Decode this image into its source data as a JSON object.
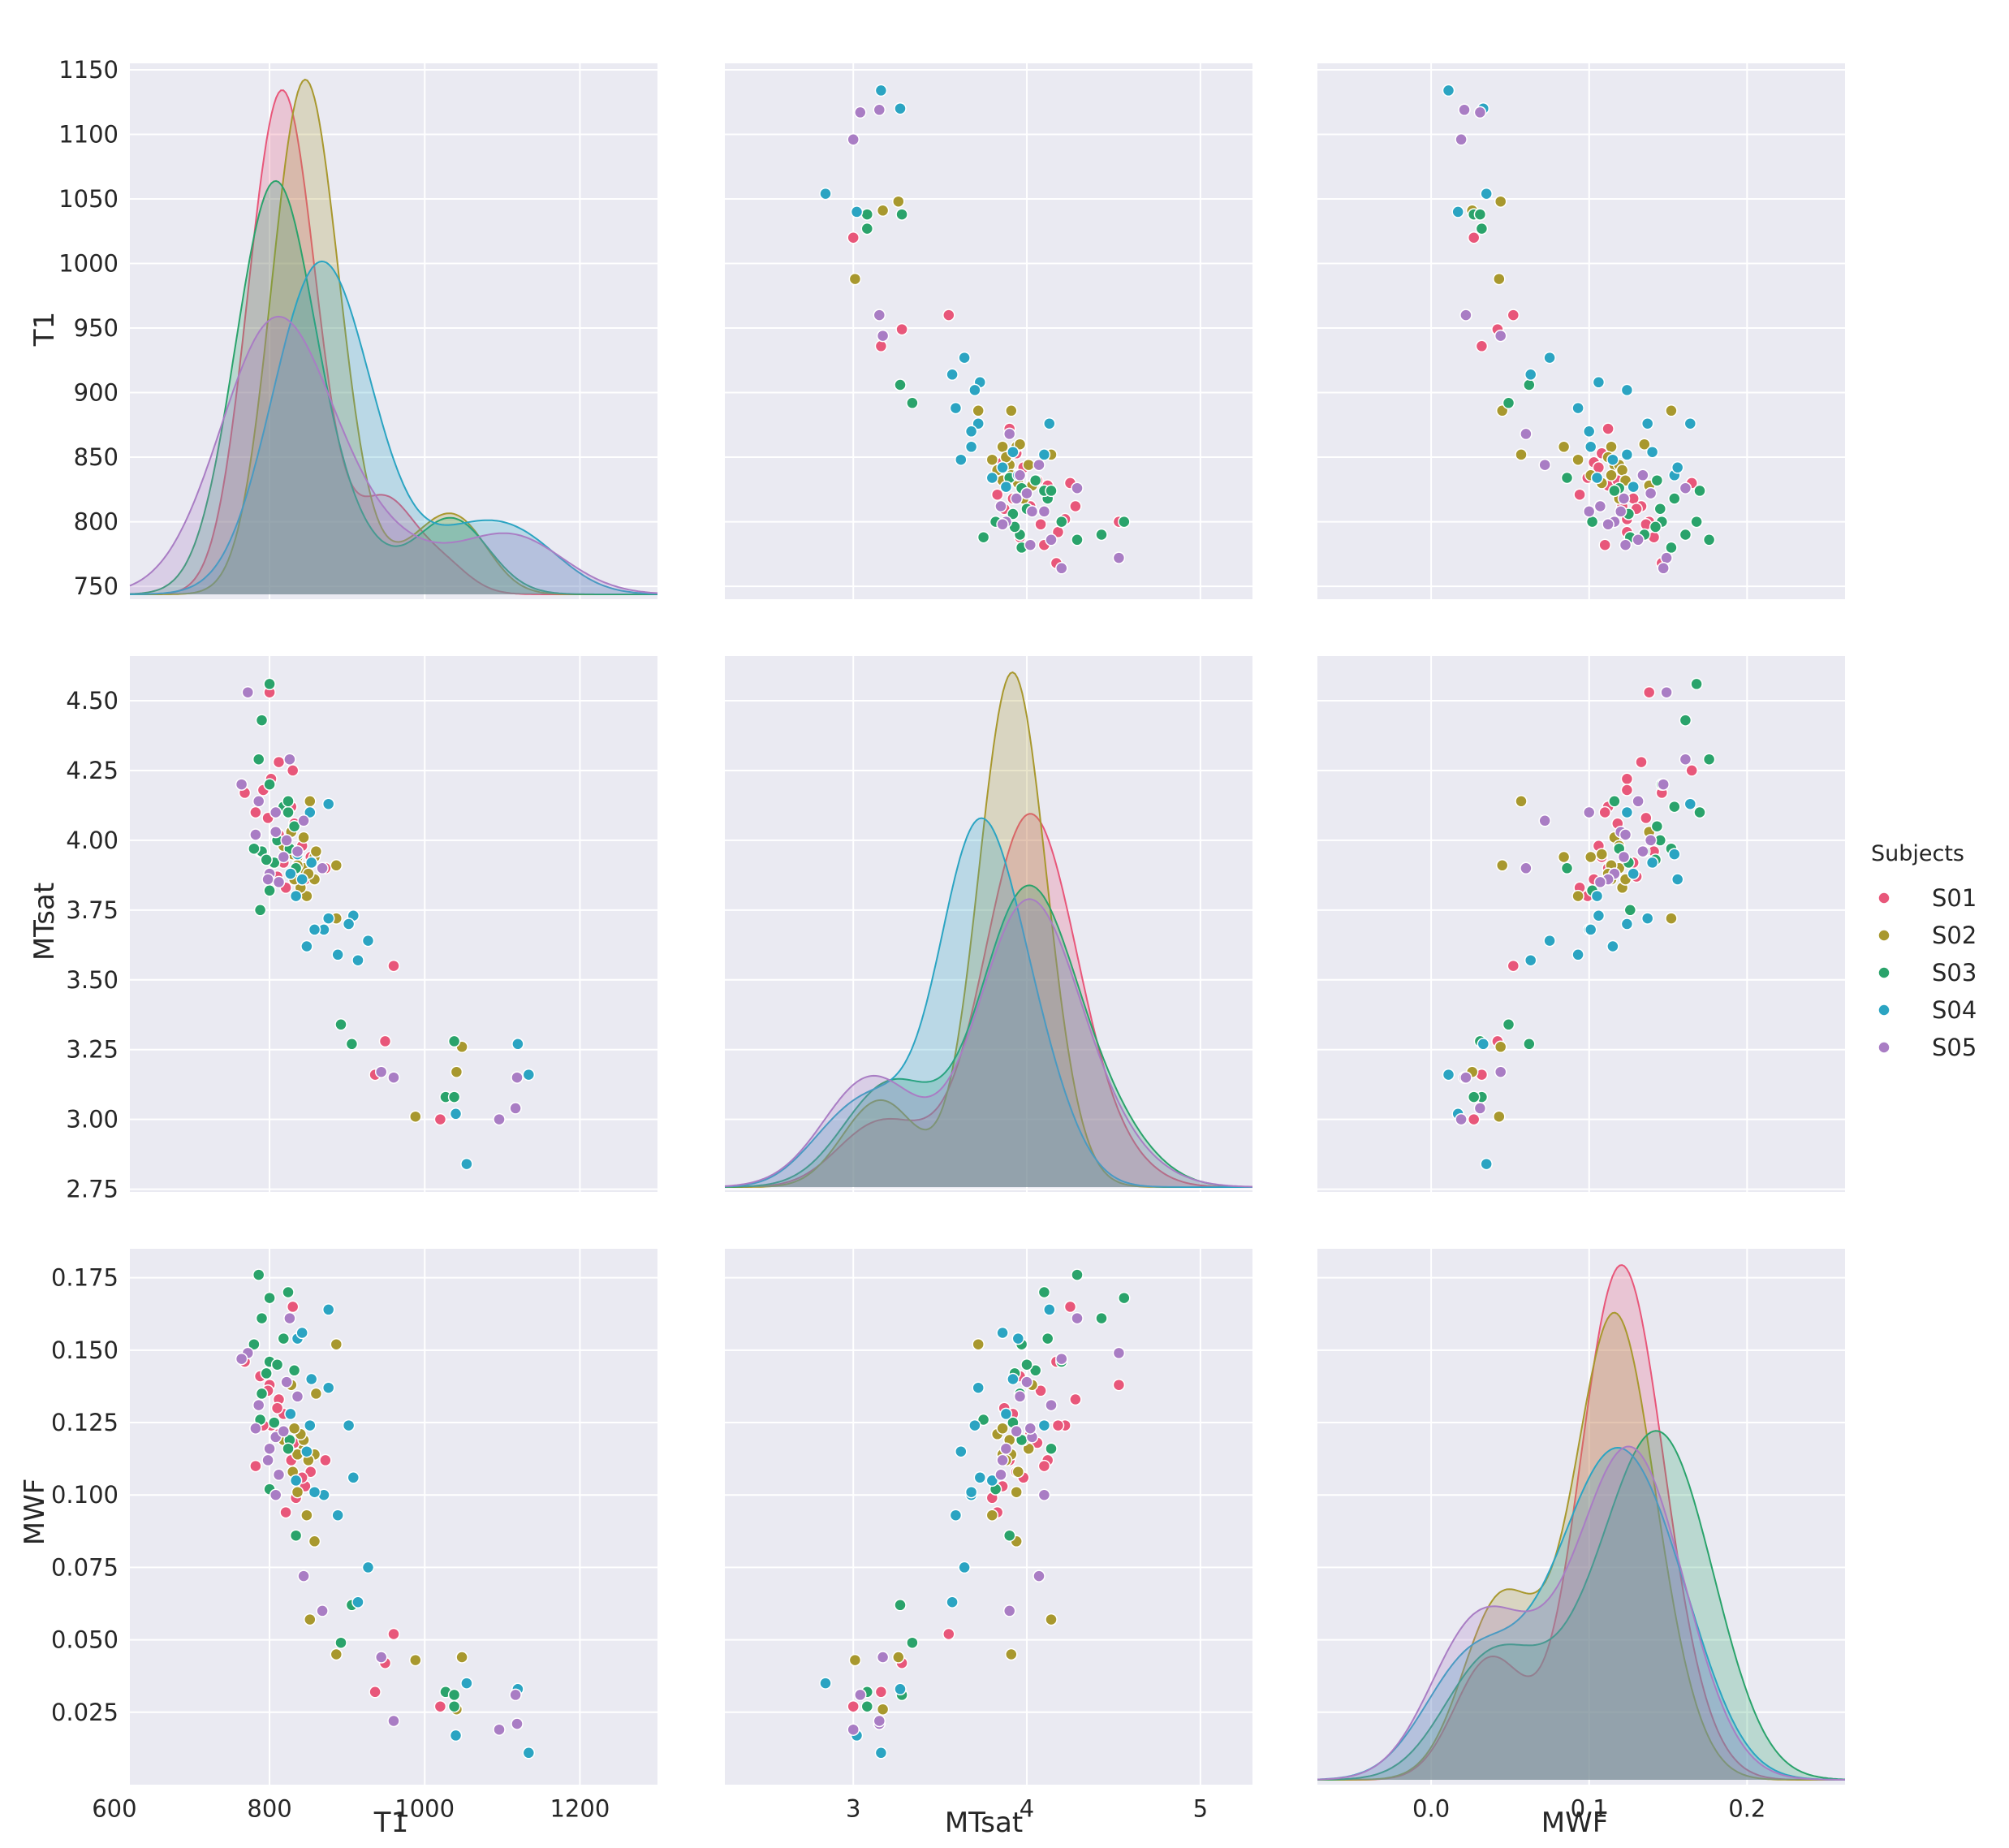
{
  "chart_data": {
    "type": "pairplot",
    "variables": [
      "T1",
      "MTsat",
      "MWF"
    ],
    "axes": {
      "T1": {
        "label": "T1",
        "range": [
          620,
          1300
        ],
        "ticks_x": [
          600,
          800,
          1000,
          1200
        ],
        "ticks_y": [
          750,
          800,
          850,
          900,
          950,
          1000,
          1050,
          1100,
          1150
        ],
        "y_range": [
          740,
          1155
        ]
      },
      "MTsat": {
        "label": "MTsat",
        "range": [
          2.26,
          5.3
        ],
        "ticks_x": [
          3,
          4,
          5
        ],
        "ticks_y": [
          2.75,
          3.0,
          3.25,
          3.5,
          3.75,
          4.0,
          4.25,
          4.5
        ],
        "y_range": [
          2.74,
          4.66
        ]
      },
      "MWF": {
        "label": "MWF",
        "range": [
          -0.072,
          0.262
        ],
        "ticks_x": [
          0.0,
          0.1,
          0.2
        ],
        "ticks_y": [
          0.025,
          0.05,
          0.075,
          0.1,
          0.125,
          0.15,
          0.175
        ],
        "y_range": [
          0.0,
          0.185
        ]
      }
    },
    "tick_labels": {
      "T1_x": [
        "600",
        "800",
        "1000",
        "1200"
      ],
      "T1_y": [
        "750",
        "800",
        "850",
        "900",
        "950",
        "1000",
        "1050",
        "1100",
        "1150"
      ],
      "MTsat_x": [
        "3",
        "4",
        "5"
      ],
      "MTsat_y": [
        "2.75",
        "3.00",
        "3.25",
        "3.50",
        "3.75",
        "4.00",
        "4.25",
        "4.50"
      ],
      "MWF_x": [
        "0.0",
        "0.1",
        "0.2"
      ],
      "MWF_y": [
        "0.025",
        "0.050",
        "0.075",
        "0.100",
        "0.125",
        "0.150",
        "0.175"
      ]
    },
    "legend": {
      "title": "Subjects",
      "position": "right",
      "entries": [
        {
          "label": "S01",
          "color": "#e8577a"
        },
        {
          "label": "S02",
          "color": "#a8982e"
        },
        {
          "label": "S03",
          "color": "#2aa36b"
        },
        {
          "label": "S04",
          "color": "#2ba4c2"
        },
        {
          "label": "S05",
          "color": "#a97dc4"
        }
      ]
    },
    "diagonal": "kde",
    "offdiagonal": "scatter",
    "series": [
      {
        "name": "S01",
        "points": [
          [
            960,
            3.55,
            0.052
          ],
          [
            949,
            3.28,
            0.042
          ],
          [
            936,
            3.16,
            0.032
          ],
          [
            1020,
            3.0,
            0.027
          ],
          [
            800,
            4.53,
            0.138
          ],
          [
            812,
            4.28,
            0.133
          ],
          [
            802,
            4.22,
            0.124
          ],
          [
            828,
            4.12,
            0.112
          ],
          [
            832,
            4.06,
            0.118
          ],
          [
            788,
            3.96,
            0.141
          ],
          [
            818,
            3.92,
            0.128
          ],
          [
            846,
            3.86,
            0.103
          ],
          [
            834,
            3.8,
            0.099
          ],
          [
            792,
            4.18,
            0.124
          ],
          [
            872,
            3.9,
            0.112
          ],
          [
            821,
            3.83,
            0.094
          ],
          [
            768,
            4.17,
            0.146
          ],
          [
            798,
            4.08,
            0.136
          ],
          [
            812,
            4.02,
            0.121
          ],
          [
            853,
            3.94,
            0.108
          ],
          [
            830,
            4.25,
            0.165
          ],
          [
            842,
            3.98,
            0.106
          ],
          [
            782,
            4.1,
            0.11
          ],
          [
            810,
            3.87,
            0.13
          ]
        ]
      },
      {
        "name": "S02",
        "points": [
          [
            988,
            3.01,
            0.043
          ],
          [
            1048,
            3.26,
            0.044
          ],
          [
            1041,
            3.17,
            0.026
          ],
          [
            886,
            3.91,
            0.045
          ],
          [
            852,
            4.14,
            0.057
          ],
          [
            858,
            3.94,
            0.084
          ],
          [
            848,
            3.8,
            0.093
          ],
          [
            836,
            3.94,
            0.101
          ],
          [
            830,
            3.95,
            0.108
          ],
          [
            858,
            3.86,
            0.114
          ],
          [
            844,
            4.01,
            0.116
          ],
          [
            844,
            3.9,
            0.119
          ],
          [
            840,
            3.83,
            0.121
          ],
          [
            832,
            3.86,
            0.123
          ],
          [
            836,
            3.91,
            0.114
          ],
          [
            828,
            4.03,
            0.138
          ],
          [
            860,
            3.96,
            0.135
          ],
          [
            886,
            3.72,
            0.152
          ],
          [
            818,
            3.98,
            0.119
          ],
          [
            850,
            3.88,
            0.112
          ]
        ]
      },
      {
        "name": "S03",
        "points": [
          [
            906,
            3.27,
            0.062
          ],
          [
            892,
            3.34,
            0.049
          ],
          [
            1027,
            3.08,
            0.032
          ],
          [
            1038,
            3.08,
            0.027
          ],
          [
            1038,
            3.28,
            0.031
          ],
          [
            800,
            4.56,
            0.168
          ],
          [
            790,
            4.43,
            0.161
          ],
          [
            786,
            4.29,
            0.176
          ],
          [
            800,
            4.2,
            0.146
          ],
          [
            818,
            4.12,
            0.154
          ],
          [
            824,
            4.1,
            0.17
          ],
          [
            832,
            4.05,
            0.143
          ],
          [
            790,
            3.96,
            0.135
          ],
          [
            780,
            3.97,
            0.152
          ],
          [
            788,
            3.75,
            0.126
          ],
          [
            826,
            3.97,
            0.119
          ],
          [
            834,
            3.9,
            0.086
          ],
          [
            800,
            3.82,
            0.102
          ],
          [
            810,
            4.0,
            0.145
          ],
          [
            824,
            4.14,
            0.116
          ],
          [
            806,
            3.92,
            0.125
          ],
          [
            796,
            3.93,
            0.142
          ]
        ]
      },
      {
        "name": "S04",
        "points": [
          [
            1134,
            3.16,
            0.011
          ],
          [
            1120,
            3.27,
            0.033
          ],
          [
            1054,
            2.84,
            0.035
          ],
          [
            1040,
            3.02,
            0.017
          ],
          [
            927,
            3.64,
            0.075
          ],
          [
            914,
            3.57,
            0.063
          ],
          [
            908,
            3.73,
            0.106
          ],
          [
            902,
            3.7,
            0.124
          ],
          [
            888,
            3.59,
            0.093
          ],
          [
            876,
            3.72,
            0.137
          ],
          [
            870,
            3.68,
            0.1
          ],
          [
            858,
            3.68,
            0.101
          ],
          [
            848,
            3.62,
            0.115
          ],
          [
            834,
            3.8,
            0.105
          ],
          [
            852,
            4.1,
            0.124
          ],
          [
            876,
            4.13,
            0.164
          ],
          [
            836,
            3.95,
            0.154
          ],
          [
            842,
            3.86,
            0.156
          ],
          [
            827,
            3.88,
            0.128
          ],
          [
            854,
            3.92,
            0.14
          ]
        ]
      },
      {
        "name": "S05",
        "points": [
          [
            1117,
            3.04,
            0.031
          ],
          [
            1096,
            3.0,
            0.019
          ],
          [
            1119,
            3.15,
            0.021
          ],
          [
            960,
            3.15,
            0.022
          ],
          [
            944,
            3.17,
            0.044
          ],
          [
            868,
            3.9,
            0.06
          ],
          [
            844,
            4.07,
            0.072
          ],
          [
            772,
            4.53,
            0.149
          ],
          [
            764,
            4.2,
            0.147
          ],
          [
            786,
            4.14,
            0.131
          ],
          [
            800,
            3.88,
            0.116
          ],
          [
            808,
            4.03,
            0.12
          ],
          [
            808,
            4.1,
            0.1
          ],
          [
            818,
            3.94,
            0.122
          ],
          [
            836,
            3.96,
            0.134
          ],
          [
            826,
            4.29,
            0.161
          ],
          [
            798,
            3.86,
            0.112
          ],
          [
            822,
            4.0,
            0.139
          ],
          [
            812,
            3.85,
            0.107
          ],
          [
            782,
            4.02,
            0.123
          ]
        ]
      }
    ]
  }
}
